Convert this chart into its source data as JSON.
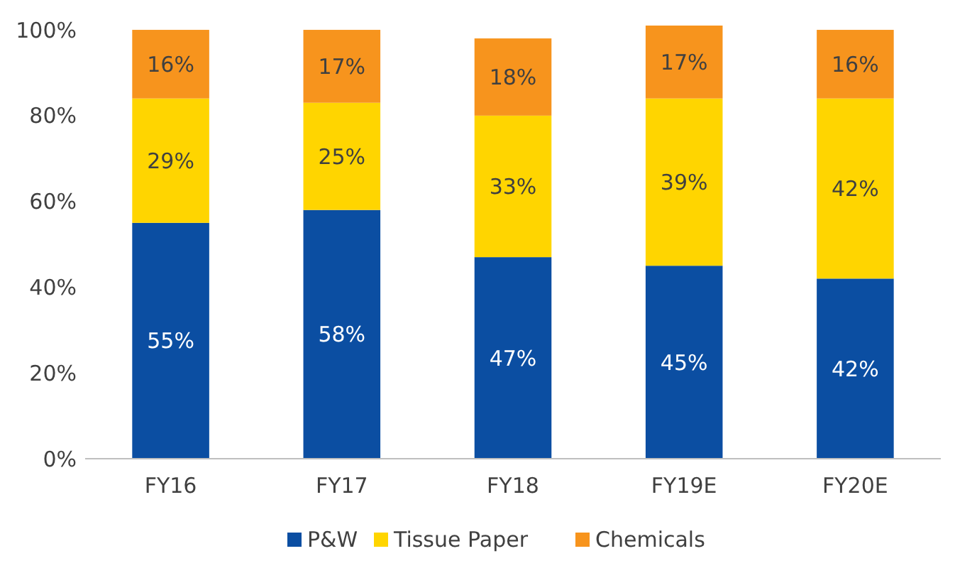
{
  "chart_data": {
    "type": "bar",
    "stacked": true,
    "categories": [
      "FY16",
      "FY17",
      "FY18",
      "FY19E",
      "FY20E"
    ],
    "series": [
      {
        "name": "P&W",
        "color": "#0b4ea2",
        "values": [
          55,
          58,
          47,
          45,
          42
        ],
        "value_labels": [
          "55%",
          "58%",
          "47%",
          "45%",
          "42%"
        ]
      },
      {
        "name": "Tissue Paper",
        "color": "#ffd500",
        "values": [
          29,
          25,
          33,
          39,
          42
        ],
        "value_labels": [
          "29%",
          "25%",
          "33%",
          "39%",
          "42%"
        ]
      },
      {
        "name": "Chemicals",
        "color": "#f7941d",
        "values": [
          16,
          17,
          18,
          17,
          16
        ],
        "value_labels": [
          "16%",
          "17%",
          "18%",
          "17%",
          "16%"
        ]
      }
    ],
    "ylim": [
      0,
      101
    ],
    "yticks": [
      {
        "value": 0,
        "label": "0%"
      },
      {
        "value": 20,
        "label": "20%"
      },
      {
        "value": 40,
        "label": "40%"
      },
      {
        "value": 60,
        "label": "60%"
      },
      {
        "value": 80,
        "label": "80%"
      },
      {
        "value": 100,
        "label": "100%"
      }
    ],
    "legend": "bottom",
    "grid": false
  }
}
